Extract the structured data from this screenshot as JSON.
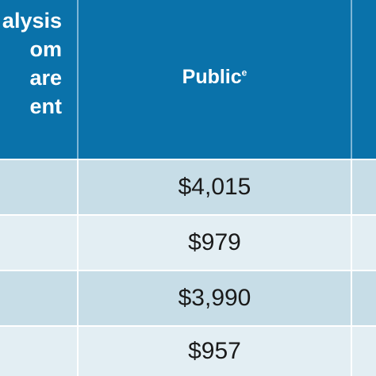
{
  "header": {
    "left_column_lines": [
      "alysis",
      "om",
      "are",
      "ent"
    ],
    "public_label": "Public",
    "public_superscript": "e"
  },
  "rows": [
    {
      "public": "$4,015"
    },
    {
      "public": "$979"
    },
    {
      "public": "$3,990"
    },
    {
      "public": "$957"
    }
  ],
  "colors": {
    "header_bg": "#0a72aa",
    "row_shaded": "#c7dde7",
    "row_light": "#e3eef3"
  }
}
